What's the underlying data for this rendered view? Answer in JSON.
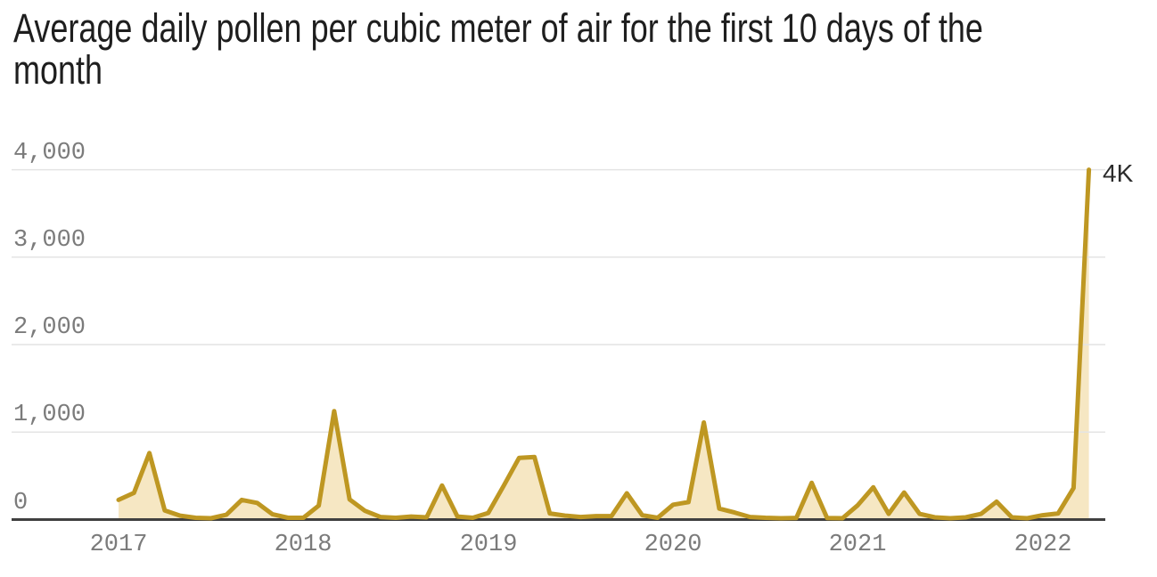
{
  "header": {
    "title": "Average daily pollen per cubic meter of air for the first 10 days of the month",
    "title_lines": [
      "Average daily pollen per cubic meter of air for the first 10 days of the",
      "month"
    ]
  },
  "chart_data": {
    "type": "area",
    "title": "Average daily pollen per cubic meter of air for the first 10 days of the month",
    "xlabel": "",
    "ylabel": "",
    "ylim": [
      0,
      4000
    ],
    "grid": "horizontal",
    "legend": "none",
    "x": [
      "Jan 2017",
      "Feb 2017",
      "Mar 2017",
      "Apr 2017",
      "May 2017",
      "Jun 2017",
      "Jul 2017",
      "Aug 2017",
      "Sep 2017",
      "Oct 2017",
      "Nov 2017",
      "Dec 2017",
      "Jan 2018",
      "Feb 2018",
      "Mar 2018",
      "Apr 2018",
      "May 2018",
      "Jun 2018",
      "Jul 2018",
      "Aug 2018",
      "Sep 2018",
      "Oct 2018",
      "Nov 2018",
      "Dec 2018",
      "Jan 2019",
      "Feb 2019",
      "Mar 2019",
      "Apr 2019",
      "May 2019",
      "Jun 2019",
      "Jul 2019",
      "Aug 2019",
      "Sep 2019",
      "Oct 2019",
      "Nov 2019",
      "Dec 2019",
      "Jan 2020",
      "Feb 2020",
      "Mar 2020",
      "Apr 2020",
      "May 2020",
      "Jun 2020",
      "Jul 2020",
      "Aug 2020",
      "Sep 2020",
      "Oct 2020",
      "Nov 2020",
      "Dec 2020",
      "Jan 2021",
      "Feb 2021",
      "Mar 2021",
      "Apr 2021",
      "May 2021",
      "Jun 2021",
      "Jul 2021",
      "Aug 2021",
      "Sep 2021",
      "Oct 2021",
      "Nov 2021",
      "Dec 2021",
      "Jan 2022",
      "Feb 2022",
      "Mar 2022",
      "Apr 2022"
    ],
    "values": [
      225,
      305,
      760,
      105,
      45,
      20,
      15,
      55,
      225,
      190,
      60,
      20,
      20,
      160,
      1240,
      230,
      100,
      30,
      20,
      35,
      25,
      390,
      35,
      20,
      75,
      385,
      705,
      715,
      70,
      45,
      30,
      40,
      40,
      300,
      50,
      20,
      170,
      200,
      1110,
      125,
      80,
      30,
      20,
      15,
      18,
      420,
      18,
      15,
      165,
      370,
      65,
      310,
      65,
      25,
      15,
      25,
      65,
      205,
      25,
      15,
      50,
      70,
      360,
      4000
    ],
    "y_ticks": [
      {
        "value": 0,
        "label": "0"
      },
      {
        "value": 1000,
        "label": "1,000"
      },
      {
        "value": 2000,
        "label": "2,000"
      },
      {
        "value": 3000,
        "label": "3,000"
      },
      {
        "value": 4000,
        "label": "4,000"
      }
    ],
    "x_ticks": [
      {
        "month_index": 0,
        "label": "2017"
      },
      {
        "month_index": 12,
        "label": "2018"
      },
      {
        "month_index": 24,
        "label": "2019"
      },
      {
        "month_index": 36,
        "label": "2020"
      },
      {
        "month_index": 48,
        "label": "2021"
      },
      {
        "month_index": 60,
        "label": "2022"
      }
    ],
    "annotation": {
      "label": "4K",
      "value": 4000,
      "month": "Apr 2022"
    },
    "colors": {
      "background": "#FFFFFF",
      "line": "#BE9722",
      "fill": "#F6E7C3",
      "grid": "#E4E4E4",
      "axis": "#404040",
      "tick_text": "#7B7B7B",
      "title_text": "#1E1E1E",
      "annotation_text": "#2B2B2B"
    }
  }
}
